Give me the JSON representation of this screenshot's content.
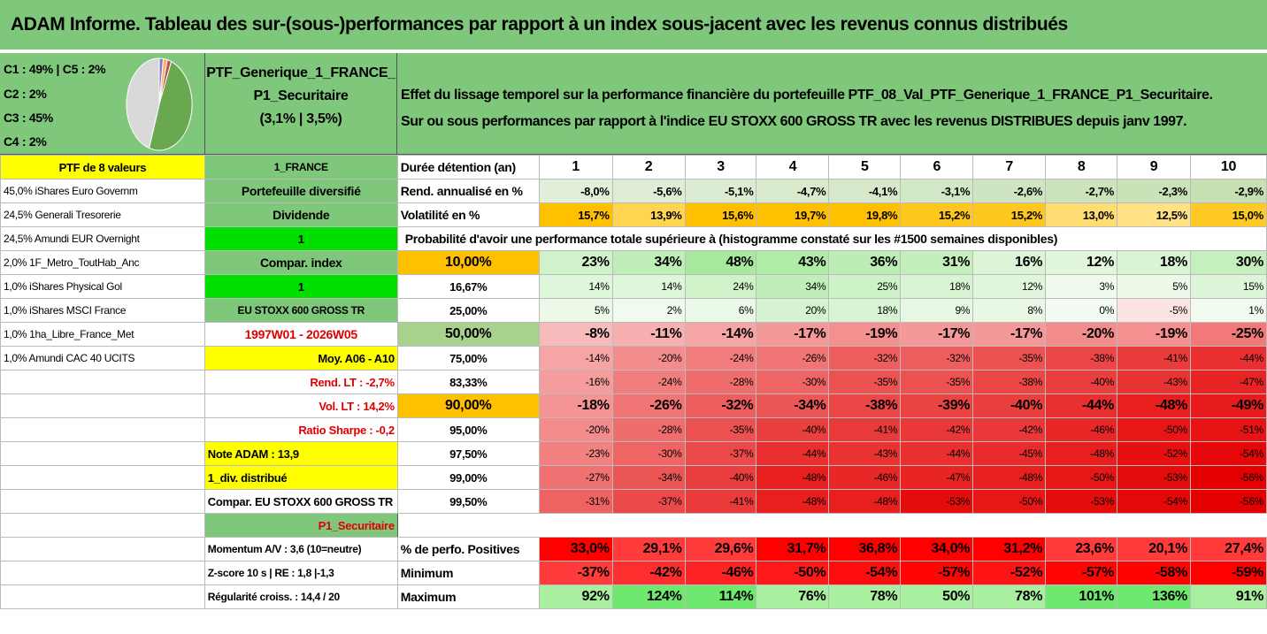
{
  "title": "ADAM Informe. Tableau des sur-(sous-)performances par rapport à un index sous-jacent avec les revenus connus distribués",
  "pie_labels": [
    "C1 : 49% | C5 : 2%",
    "C2 : 2%",
    "C3 : 45%",
    "C4 : 2%"
  ],
  "portfolio": {
    "name1": "PTF_Generique_1_FRANCE_",
    "name2": "P1_Securitaire",
    "perf": "(3,1% | 3,5%)"
  },
  "effect": {
    "line1": "Effet du lissage temporel sur la performance financière du portefeuille PTF_08_Val_PTF_Generique_1_FRANCE_P1_Securitaire.",
    "line2": "Sur ou sous performances par rapport à l'indice EU STOXX 600 GROSS TR avec les revenus DISTRIBUES depuis janv 1997."
  },
  "colors": {
    "green": "#7fc77b",
    "yellow": "#ffff00",
    "orange": "#ffc000",
    "bright_green": "#00e000"
  },
  "rows": [
    {
      "a": "PTF de 8 valeurs",
      "b": "1_FRANCE",
      "c": "Durée détention (an)",
      "v": [
        "1",
        "2",
        "3",
        "4",
        "5",
        "6",
        "7",
        "8",
        "9",
        "10"
      ]
    },
    {
      "a": "45,0% iShares Euro Governm",
      "b": "Portefeuille diversifié",
      "c": "Rend. annualisé en %",
      "v": [
        "-8,0%",
        "-5,6%",
        "-5,1%",
        "-4,7%",
        "-4,1%",
        "-3,1%",
        "-2,6%",
        "-2,7%",
        "-2,3%",
        "-2,9%"
      ]
    },
    {
      "a": "24,5% Generali Tresorerie",
      "b": "Dividende",
      "c": "Volatilité en %",
      "v": [
        "15,7%",
        "13,9%",
        "15,6%",
        "19,7%",
        "19,8%",
        "15,2%",
        "15,2%",
        "13,0%",
        "12,5%",
        "15,0%"
      ]
    },
    {
      "a": "24,5% Amundi EUR Overnight",
      "b": "1",
      "c": "Probabilité d'avoir une performance totale supérieure à (histogramme constaté sur les #1500 semaines disponibles)",
      "v": []
    },
    {
      "a": "2,0% 1F_Metro_ToutHab_Anc",
      "b": "Compar. index",
      "c": "10,00%",
      "v": [
        "23%",
        "34%",
        "48%",
        "43%",
        "36%",
        "31%",
        "16%",
        "12%",
        "18%",
        "30%"
      ]
    },
    {
      "a": "1,0% iShares Physical Gol",
      "b": "1",
      "c": "16,67%",
      "v": [
        "14%",
        "14%",
        "24%",
        "34%",
        "25%",
        "18%",
        "12%",
        "3%",
        "5%",
        "15%"
      ]
    },
    {
      "a": "1,0% iShares MSCI France",
      "b": "EU STOXX 600 GROSS TR",
      "c": "25,00%",
      "v": [
        "5%",
        "2%",
        "6%",
        "20%",
        "18%",
        "9%",
        "8%",
        "0%",
        "-5%",
        "1%"
      ]
    },
    {
      "a": "1,0% 1ha_Libre_France_Met",
      "b": "1997W01 - 2026W05",
      "c": "50,00%",
      "v": [
        "-8%",
        "-11%",
        "-14%",
        "-17%",
        "-19%",
        "-17%",
        "-17%",
        "-20%",
        "-19%",
        "-25%"
      ]
    },
    {
      "a": "1,0% Amundi CAC 40 UCITS",
      "b": "Moy. A06 - A10",
      "c": "75,00%",
      "v": [
        "-14%",
        "-20%",
        "-24%",
        "-26%",
        "-32%",
        "-32%",
        "-35%",
        "-38%",
        "-41%",
        "-44%"
      ]
    },
    {
      "a": "",
      "b": "Rend. LT : -2,7%",
      "c": "83,33%",
      "v": [
        "-16%",
        "-24%",
        "-28%",
        "-30%",
        "-35%",
        "-35%",
        "-38%",
        "-40%",
        "-43%",
        "-47%"
      ]
    },
    {
      "a": "",
      "b": "Vol. LT : 14,2%",
      "c": "90,00%",
      "v": [
        "-18%",
        "-26%",
        "-32%",
        "-34%",
        "-38%",
        "-39%",
        "-40%",
        "-44%",
        "-48%",
        "-49%"
      ]
    },
    {
      "a": "",
      "b": "Ratio Sharpe : -0,2",
      "c": "95,00%",
      "v": [
        "-20%",
        "-28%",
        "-35%",
        "-40%",
        "-41%",
        "-42%",
        "-42%",
        "-46%",
        "-50%",
        "-51%"
      ]
    },
    {
      "a": "",
      "b": "Note ADAM : 13,9",
      "c": "97,50%",
      "v": [
        "-23%",
        "-30%",
        "-37%",
        "-44%",
        "-43%",
        "-44%",
        "-45%",
        "-48%",
        "-52%",
        "-54%"
      ]
    },
    {
      "a": "",
      "b": "1_div. distribué",
      "c": "99,00%",
      "v": [
        "-27%",
        "-34%",
        "-40%",
        "-48%",
        "-46%",
        "-47%",
        "-48%",
        "-50%",
        "-53%",
        "-56%"
      ]
    },
    {
      "a": "",
      "b": "Compar. EU STOXX 600 GROSS TR",
      "c": "99,50%",
      "v": [
        "-31%",
        "-37%",
        "-41%",
        "-48%",
        "-48%",
        "-53%",
        "-50%",
        "-53%",
        "-54%",
        "-56%"
      ]
    },
    {
      "a": "",
      "b": "P1_Securitaire",
      "c": "",
      "v": []
    },
    {
      "a": "",
      "b": "Momentum A/V : 3,6 (10=neutre)",
      "c": "% de perfo. Positives",
      "v": [
        "33,0%",
        "29,1%",
        "29,6%",
        "31,7%",
        "36,8%",
        "34,0%",
        "31,2%",
        "23,6%",
        "20,1%",
        "27,4%"
      ]
    },
    {
      "a": "",
      "b": "Z-score 10 s | RE : 1,8 |-1,3",
      "c": "Minimum",
      "v": [
        "-37%",
        "-42%",
        "-46%",
        "-50%",
        "-54%",
        "-57%",
        "-52%",
        "-57%",
        "-58%",
        "-59%"
      ]
    },
    {
      "a": "",
      "b": "Régularité croiss. : 14,4 / 20",
      "c": "Maximum",
      "v": [
        "92%",
        "124%",
        "114%",
        "76%",
        "78%",
        "50%",
        "78%",
        "101%",
        "136%",
        "91%"
      ]
    }
  ]
}
